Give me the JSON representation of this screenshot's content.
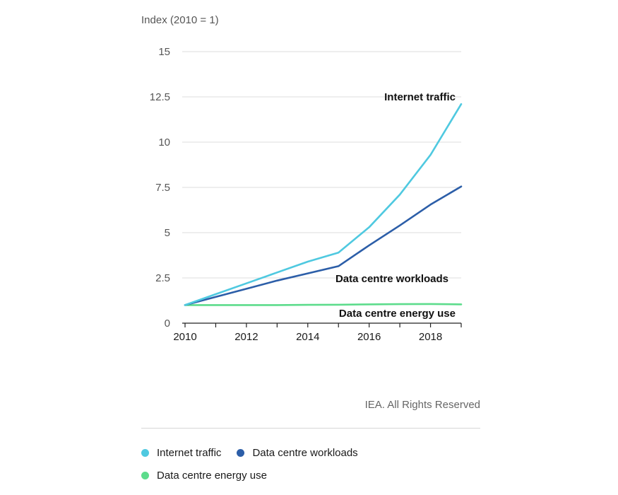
{
  "chart_data": {
    "type": "line",
    "ylabel": "Index (2010 = 1)",
    "xlabel": "",
    "ylim": [
      0,
      15
    ],
    "xlim": [
      2010,
      2019
    ],
    "yticks": [
      0,
      2.5,
      5,
      7.5,
      10,
      12.5,
      15
    ],
    "ytick_labels": [
      "0",
      "2.5",
      "5",
      "7.5",
      "10",
      "12.5",
      "15"
    ],
    "xticks": [
      2010,
      2012,
      2014,
      2016,
      2018
    ],
    "xtick_labels": [
      "2010",
      "2012",
      "2014",
      "2016",
      "2018"
    ],
    "grid": "horizontal",
    "series": [
      {
        "name": "Internet traffic",
        "color": "#4fc9e0",
        "x": [
          2010,
          2011,
          2012,
          2013,
          2014,
          2015,
          2016,
          2017,
          2018,
          2019
        ],
        "values": [
          1,
          1.6,
          2.2,
          2.8,
          3.4,
          3.9,
          5.3,
          7.1,
          9.3,
          12.1
        ],
        "annotation": "Internet traffic"
      },
      {
        "name": "Data centre workloads",
        "color": "#2c5ea8",
        "x": [
          2010,
          2011,
          2012,
          2013,
          2014,
          2015,
          2016,
          2017,
          2018,
          2019
        ],
        "values": [
          1,
          1.45,
          1.9,
          2.35,
          2.75,
          3.15,
          4.3,
          5.4,
          6.55,
          7.55
        ],
        "annotation": "Data centre workloads"
      },
      {
        "name": "Data centre energy use",
        "color": "#5ddc8c",
        "x": [
          2010,
          2011,
          2012,
          2013,
          2014,
          2015,
          2016,
          2017,
          2018,
          2019
        ],
        "values": [
          1,
          1,
          1,
          1,
          1.01,
          1.02,
          1.04,
          1.05,
          1.06,
          1.04
        ],
        "annotation": "Data centre energy use"
      }
    ]
  },
  "credit": "IEA. All Rights Reserved",
  "legend": [
    {
      "label": "Internet traffic",
      "color": "#4fc9e0"
    },
    {
      "label": "Data centre workloads",
      "color": "#2c5ea8"
    },
    {
      "label": "Data centre energy use",
      "color": "#5ddc8c"
    }
  ]
}
